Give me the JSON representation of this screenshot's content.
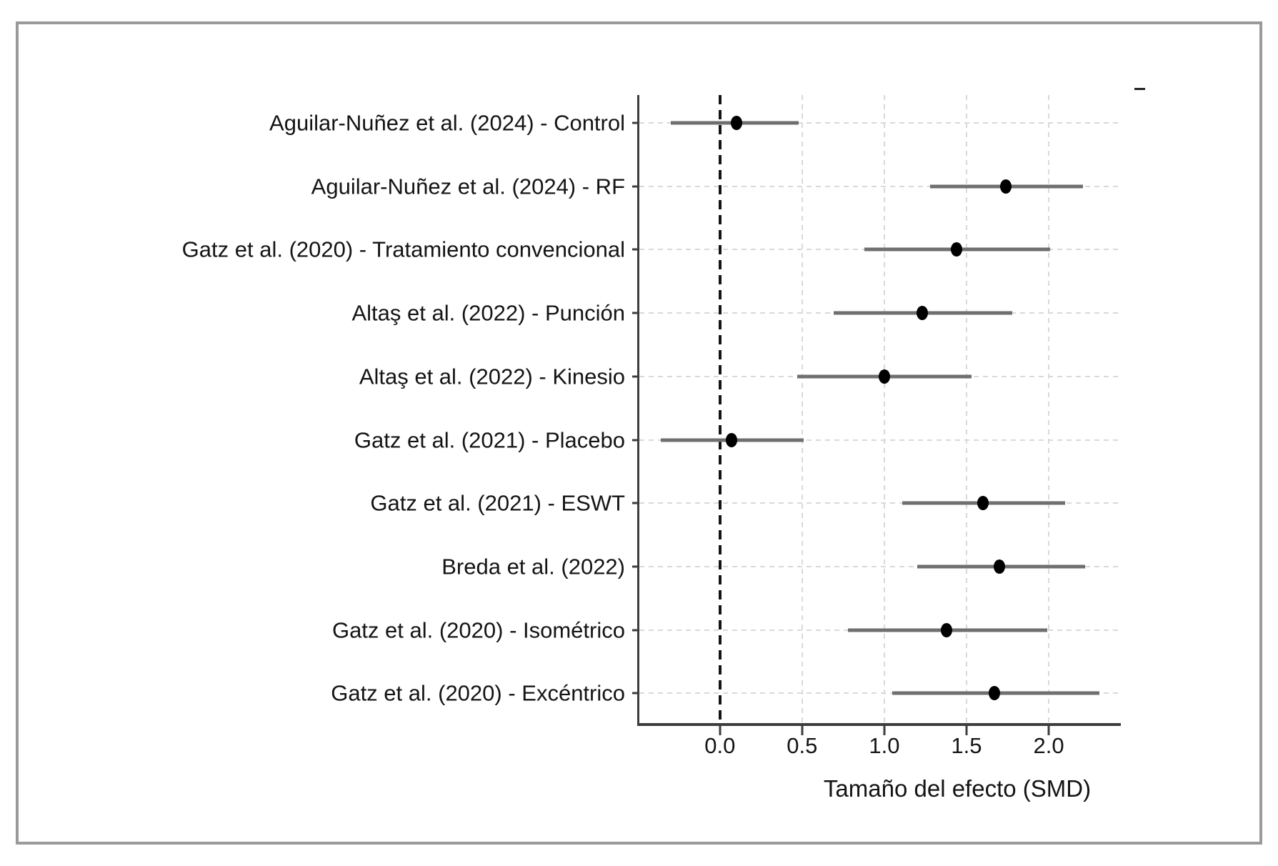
{
  "frame": {
    "border_color": "#9a9a9a"
  },
  "colors": {
    "dot": "#000000",
    "ci_line": "#6f6f6f",
    "grid": "#d9d9d9",
    "axis": "#3d3d3d",
    "reference_line": "#141414",
    "text": "#141414",
    "background": "#ffffff"
  },
  "chart_data": {
    "type": "scatter",
    "variant": "forest-plot",
    "title": "",
    "xlabel": "Tamaño del efecto (SMD)",
    "ylabel": "",
    "xlim": [
      -0.49,
      2.43
    ],
    "x_ticks": [
      0.0,
      0.5,
      1.0,
      1.5,
      2.0
    ],
    "x_tick_labels": [
      "0.0",
      "0.5",
      "1.0",
      "1.5",
      "2.0"
    ],
    "grid": true,
    "reference_line_x": 0.0,
    "legend": false,
    "studies": [
      {
        "label": "Aguilar-Nuñez et al. (2024) - Control",
        "estimate": 0.1,
        "ci_low": -0.3,
        "ci_high": 0.48
      },
      {
        "label": "Aguilar-Nuñez et al. (2024) - RF",
        "estimate": 1.74,
        "ci_low": 1.28,
        "ci_high": 2.21
      },
      {
        "label": "Gatz et al. (2020) - Tratamiento convencional",
        "estimate": 1.44,
        "ci_low": 0.88,
        "ci_high": 2.01
      },
      {
        "label": "Altaş et al. (2022) - Punción",
        "estimate": 1.23,
        "ci_low": 0.69,
        "ci_high": 1.78
      },
      {
        "label": "Altaş et al. (2022) - Kinesio",
        "estimate": 1.0,
        "ci_low": 0.47,
        "ci_high": 1.53
      },
      {
        "label": "Gatz et al. (2021) - Placebo",
        "estimate": 0.07,
        "ci_low": -0.36,
        "ci_high": 0.51
      },
      {
        "label": "Gatz et al. (2021) - ESWT",
        "estimate": 1.6,
        "ci_low": 1.11,
        "ci_high": 2.1
      },
      {
        "label": "Breda et al. (2022)",
        "estimate": 1.7,
        "ci_low": 1.2,
        "ci_high": 2.22
      },
      {
        "label": "Gatz et al. (2020) - Isométrico",
        "estimate": 1.38,
        "ci_low": 0.78,
        "ci_high": 1.99
      },
      {
        "label": "Gatz et al. (2020) - Excéntrico",
        "estimate": 1.67,
        "ci_low": 1.05,
        "ci_high": 2.31
      }
    ]
  }
}
